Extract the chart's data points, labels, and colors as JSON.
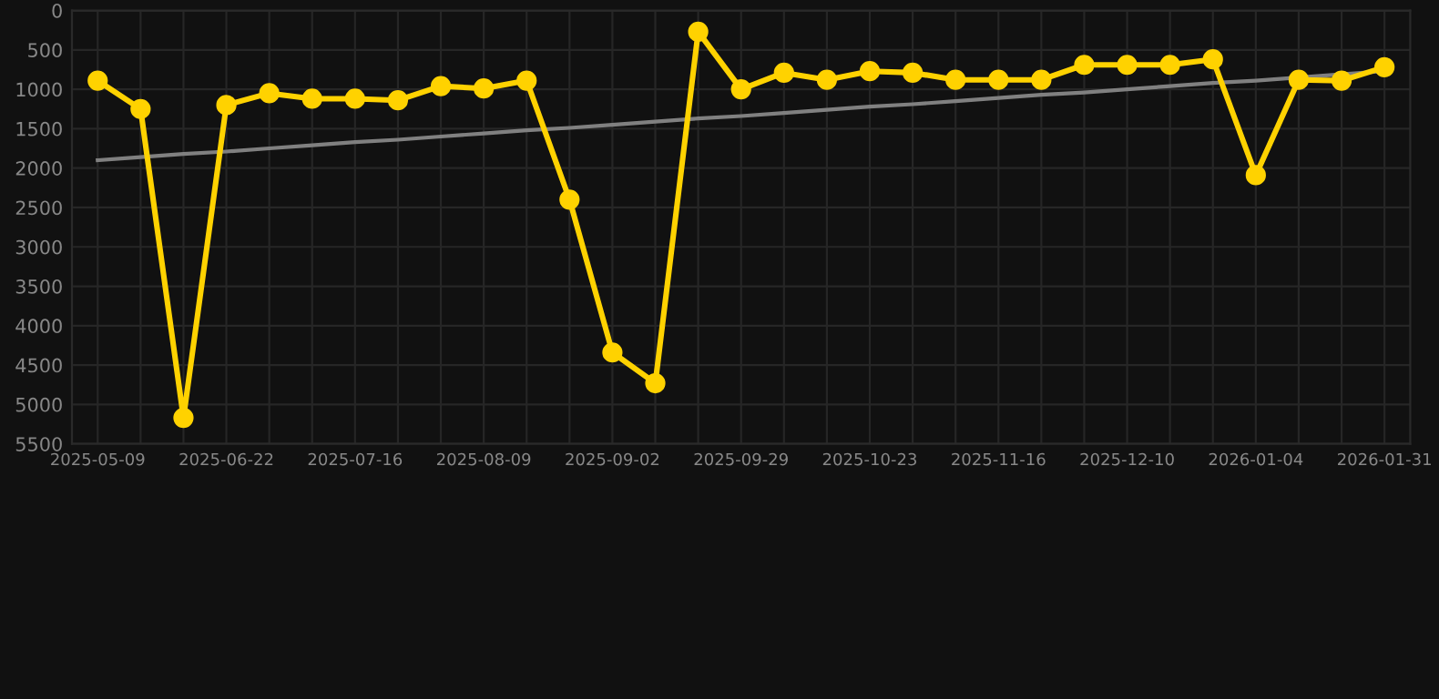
{
  "chart_data": {
    "type": "line",
    "categories": [
      "2025-05-09",
      null,
      null,
      "2025-06-22",
      null,
      null,
      "2025-07-16",
      null,
      null,
      "2025-08-09",
      null,
      null,
      "2025-09-02",
      null,
      null,
      "2025-09-29",
      null,
      null,
      "2025-10-23",
      null,
      null,
      "2025-11-16",
      null,
      null,
      "2025-12-10",
      null,
      null,
      "2026-01-04",
      null,
      null,
      "2026-01-31"
    ],
    "series": [
      {
        "color": "#ffd200",
        "marker": "circle",
        "line_style": "solid",
        "values": [
          890,
          1250,
          5170,
          1200,
          1050,
          1120,
          1120,
          1140,
          960,
          990,
          890,
          2400,
          4340,
          4730,
          270,
          1000,
          790,
          880,
          770,
          790,
          880,
          880,
          880,
          690,
          690,
          690,
          620,
          2090,
          880,
          890,
          720
        ]
      },
      {
        "type": "line",
        "color": "#808080",
        "marker": "none",
        "line_style": "solid",
        "values": [
          1900,
          1860,
          1820,
          1790,
          1750,
          1710,
          1670,
          1640,
          1600,
          1560,
          1520,
          1490,
          1450,
          1410,
          1370,
          1340,
          1300,
          1260,
          1220,
          1190,
          1150,
          1110,
          1070,
          1040,
          1000,
          960,
          920,
          890,
          850,
          810,
          770
        ]
      }
    ],
    "ylim": [
      5500,
      0
    ],
    "yticks": [
      0,
      500,
      1000,
      1500,
      2000,
      2500,
      3000,
      3500,
      4000,
      4500,
      5000,
      5500
    ],
    "grid": true
  }
}
